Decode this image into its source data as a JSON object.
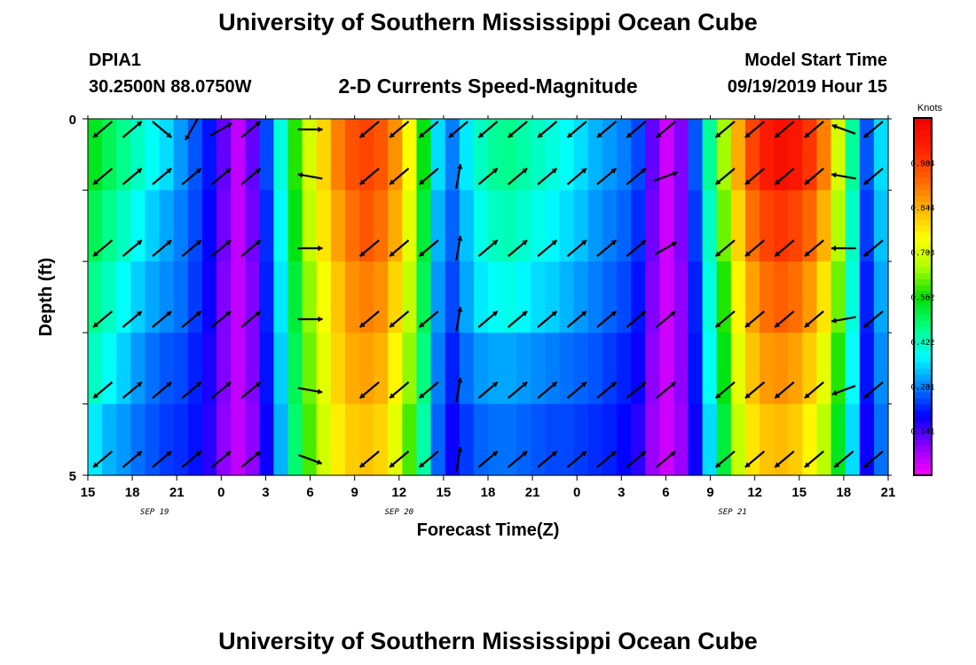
{
  "header": {
    "title": "University of Southern Mississippi Ocean Cube",
    "station_id": "DPIA1",
    "station_location": "30.2500N 88.0750W",
    "plot_title": "2-D Currents Speed-Magnitude",
    "model_start_label": "Model Start Time",
    "model_start_value": "09/19/2019 Hour 15"
  },
  "footer": {
    "title": "University of Southern Mississippi Ocean Cube"
  },
  "chart_data": {
    "type": "heatmap",
    "title": "2-D Currents Speed-Magnitude",
    "xlabel": "Forecast Time(Z)",
    "ylabel": "Depth (ft)",
    "x_start_hour": 15,
    "x_end_hour": 69,
    "x_ticks": [
      {
        "hour": 15,
        "label": "15"
      },
      {
        "hour": 18,
        "label": "18"
      },
      {
        "hour": 21,
        "label": "21"
      },
      {
        "hour": 24,
        "label": "0"
      },
      {
        "hour": 27,
        "label": "3"
      },
      {
        "hour": 30,
        "label": "6"
      },
      {
        "hour": 33,
        "label": "9"
      },
      {
        "hour": 36,
        "label": "12"
      },
      {
        "hour": 39,
        "label": "15"
      },
      {
        "hour": 42,
        "label": "18"
      },
      {
        "hour": 45,
        "label": "21"
      },
      {
        "hour": 48,
        "label": "0"
      },
      {
        "hour": 51,
        "label": "3"
      },
      {
        "hour": 54,
        "label": "6"
      },
      {
        "hour": 57,
        "label": "9"
      },
      {
        "hour": 60,
        "label": "12"
      },
      {
        "hour": 63,
        "label": "15"
      },
      {
        "hour": 66,
        "label": "18"
      },
      {
        "hour": 69,
        "label": "21"
      }
    ],
    "date_labels": [
      {
        "hour": 19.5,
        "label": "SEP 19"
      },
      {
        "hour": 36,
        "label": "SEP 20"
      },
      {
        "hour": 58.5,
        "label": "SEP 21"
      }
    ],
    "y_ticks": [
      {
        "depth": 0,
        "label": "0"
      },
      {
        "depth": 5,
        "label": "5"
      }
    ],
    "depth_levels": [
      0.5,
      1.5,
      2.5,
      3.5,
      4.5
    ],
    "colorbar": {
      "unit_label": "Knots",
      "min": 0,
      "max": 1.125,
      "tick_values": [
        0.141,
        0.281,
        0.422,
        0.562,
        0.703,
        0.844,
        0.984
      ],
      "tick_labels": [
        "0.141",
        "0.281",
        "0.422",
        "0.562",
        "0.703",
        "0.844",
        "0.984"
      ],
      "colors": [
        "#ff00ff",
        "#8a00ff",
        "#0000ff",
        "#0080ff",
        "#00ffff",
        "#00ff80",
        "#00e000",
        "#b0ff00",
        "#ffff00",
        "#ffb000",
        "#ff6000",
        "#ff2000",
        "#f00000"
      ]
    },
    "speed_knots_rows": [
      [
        0.54,
        0.5,
        0.46,
        0.42,
        0.38,
        0.35,
        0.3,
        0.25,
        0.2,
        0.12,
        0.05,
        0.12,
        0.24,
        0.4,
        0.58,
        0.7,
        0.8,
        0.9,
        0.96,
        0.98,
        0.95,
        0.88,
        0.75,
        0.55,
        0.35,
        0.28,
        0.36,
        0.42,
        0.45,
        0.46,
        0.44,
        0.42,
        0.4,
        0.38,
        0.35,
        0.32,
        0.3,
        0.28,
        0.24,
        0.12,
        0.04,
        0.1,
        0.25,
        0.45,
        0.65,
        0.85,
        0.98,
        1.05,
        1.08,
        1.06,
        1.0,
        0.9,
        0.7,
        0.45,
        0.25,
        0.35
      ],
      [
        0.5,
        0.46,
        0.42,
        0.38,
        0.34,
        0.31,
        0.28,
        0.24,
        0.19,
        0.11,
        0.05,
        0.11,
        0.22,
        0.38,
        0.55,
        0.68,
        0.78,
        0.86,
        0.92,
        0.95,
        0.92,
        0.85,
        0.72,
        0.52,
        0.32,
        0.26,
        0.33,
        0.39,
        0.42,
        0.43,
        0.41,
        0.39,
        0.37,
        0.35,
        0.33,
        0.3,
        0.28,
        0.26,
        0.22,
        0.11,
        0.04,
        0.1,
        0.23,
        0.42,
        0.62,
        0.8,
        0.92,
        0.98,
        1.0,
        0.98,
        0.93,
        0.84,
        0.66,
        0.42,
        0.23,
        0.33
      ],
      [
        0.46,
        0.42,
        0.38,
        0.34,
        0.31,
        0.29,
        0.27,
        0.23,
        0.18,
        0.1,
        0.05,
        0.1,
        0.21,
        0.36,
        0.52,
        0.64,
        0.74,
        0.82,
        0.88,
        0.9,
        0.88,
        0.8,
        0.68,
        0.5,
        0.3,
        0.24,
        0.31,
        0.36,
        0.38,
        0.39,
        0.37,
        0.35,
        0.34,
        0.32,
        0.3,
        0.28,
        0.26,
        0.24,
        0.2,
        0.1,
        0.04,
        0.09,
        0.21,
        0.4,
        0.58,
        0.76,
        0.86,
        0.92,
        0.94,
        0.92,
        0.87,
        0.78,
        0.62,
        0.4,
        0.21,
        0.31
      ],
      [
        0.42,
        0.38,
        0.34,
        0.3,
        0.27,
        0.25,
        0.24,
        0.21,
        0.17,
        0.1,
        0.05,
        0.1,
        0.2,
        0.34,
        0.5,
        0.62,
        0.72,
        0.8,
        0.85,
        0.86,
        0.84,
        0.76,
        0.64,
        0.47,
        0.28,
        0.21,
        0.27,
        0.3,
        0.31,
        0.31,
        0.3,
        0.29,
        0.28,
        0.27,
        0.26,
        0.25,
        0.23,
        0.21,
        0.18,
        0.09,
        0.04,
        0.09,
        0.2,
        0.38,
        0.55,
        0.72,
        0.82,
        0.87,
        0.88,
        0.86,
        0.81,
        0.72,
        0.58,
        0.38,
        0.2,
        0.29
      ],
      [
        0.36,
        0.32,
        0.3,
        0.27,
        0.25,
        0.23,
        0.22,
        0.2,
        0.16,
        0.09,
        0.05,
        0.09,
        0.18,
        0.32,
        0.48,
        0.6,
        0.7,
        0.77,
        0.81,
        0.82,
        0.8,
        0.72,
        0.6,
        0.44,
        0.26,
        0.18,
        0.23,
        0.26,
        0.27,
        0.27,
        0.26,
        0.25,
        0.24,
        0.24,
        0.23,
        0.22,
        0.21,
        0.19,
        0.16,
        0.08,
        0.04,
        0.08,
        0.18,
        0.35,
        0.52,
        0.68,
        0.78,
        0.82,
        0.83,
        0.81,
        0.76,
        0.67,
        0.54,
        0.35,
        0.18,
        0.27
      ]
    ],
    "arrow_hours": [
      16,
      18,
      20,
      22,
      24,
      26,
      30,
      34,
      36,
      38,
      40,
      42,
      44,
      46,
      48,
      50,
      52,
      54,
      58,
      60,
      62,
      64,
      66,
      68
    ],
    "arrow_angles_deg": [
      [
        140,
        -40,
        40,
        120,
        -30,
        -40,
        0,
        140,
        140,
        140,
        140,
        140,
        140,
        140,
        140,
        140,
        140,
        140,
        140,
        140,
        140,
        140,
        200,
        140
      ],
      [
        140,
        -40,
        -40,
        -40,
        -40,
        -40,
        190,
        140,
        140,
        140,
        -80,
        -40,
        -40,
        -40,
        -40,
        -40,
        -40,
        -20,
        140,
        140,
        140,
        140,
        190,
        140
      ],
      [
        140,
        -40,
        -40,
        -40,
        -40,
        -40,
        0,
        140,
        140,
        140,
        -80,
        -40,
        -40,
        -40,
        -40,
        -40,
        -40,
        -30,
        140,
        140,
        140,
        140,
        180,
        140
      ],
      [
        140,
        -40,
        -40,
        -40,
        -40,
        -40,
        0,
        140,
        140,
        140,
        -80,
        -40,
        -40,
        -40,
        -40,
        -40,
        -40,
        -40,
        140,
        140,
        140,
        140,
        170,
        140
      ],
      [
        140,
        -40,
        -40,
        -40,
        -40,
        -40,
        10,
        140,
        140,
        140,
        -80,
        -40,
        -40,
        -40,
        -40,
        -40,
        -40,
        -40,
        140,
        140,
        140,
        140,
        160,
        140
      ],
      [
        140,
        -40,
        -40,
        -40,
        -40,
        -40,
        20,
        140,
        140,
        140,
        -80,
        -40,
        -40,
        -40,
        -40,
        -40,
        -40,
        -40,
        140,
        140,
        140,
        140,
        140,
        140
      ]
    ]
  }
}
